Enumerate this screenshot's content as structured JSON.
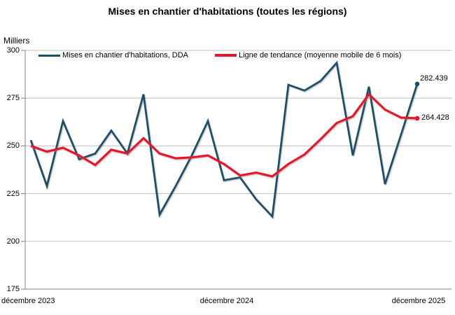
{
  "chart_data": {
    "type": "line",
    "title": "Mises en chantier d'habitations (toutes les régions)",
    "unit_label": "Milliers",
    "ylim": [
      175,
      300
    ],
    "y_ticks": [
      300,
      275,
      250,
      225,
      200,
      175
    ],
    "x_tick_labels": [
      "décembre 2023",
      "décembre 2024",
      "décembre 2025"
    ],
    "x_range_months": 25,
    "grid": true,
    "legend_position": "top",
    "colors": {
      "grid": "#bfbfbf",
      "axis": "#808080",
      "text": "#000000"
    },
    "series": [
      {
        "name": "Mises en chantier d'habitations, DDA",
        "color": "#1B4F68",
        "end_label": "282.439",
        "values": [
          253,
          229,
          263,
          243,
          246,
          258,
          246,
          277,
          214,
          229,
          245,
          263,
          232,
          233.5,
          222,
          213,
          282,
          279,
          284,
          293.5,
          245,
          281,
          230,
          256,
          282.439
        ]
      },
      {
        "name": "Ligne de tendance (moyenne mobile de 6 mois)",
        "color": "#E8142B",
        "end_label": "264.428",
        "values": [
          250,
          247,
          249,
          245,
          240,
          248,
          246,
          254,
          246,
          243.5,
          244,
          245,
          240.5,
          234.5,
          236,
          234,
          240.5,
          245.5,
          253.5,
          262,
          265.5,
          277,
          269,
          264.8,
          264.428
        ]
      }
    ]
  }
}
